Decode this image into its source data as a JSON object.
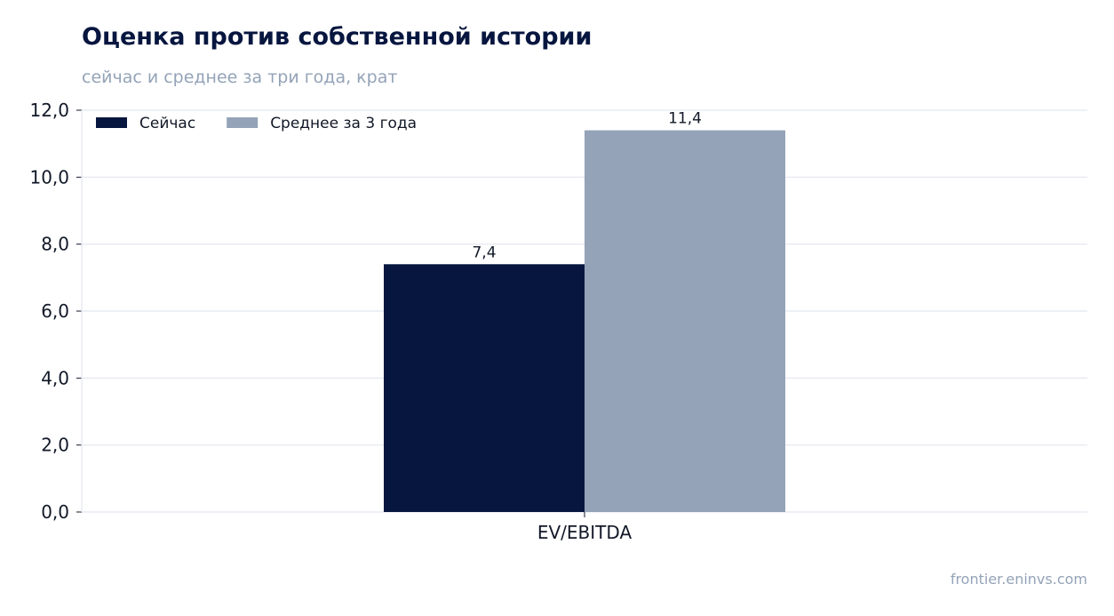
{
  "header": {
    "title": "Оценка против собственной истории",
    "subtitle": "сейчас и среднее за три года, крат"
  },
  "footer": {
    "source": "frontier.eninvs.com"
  },
  "colors": {
    "series_now": "#06163f",
    "series_avg": "#94a3b8",
    "grid": "#e2e6ee",
    "axis": "#111827"
  },
  "chart_data": {
    "type": "bar",
    "title": "Оценка против собственной истории",
    "subtitle": "сейчас и среднее за три года, крат",
    "categories": [
      "EV/EBITDA"
    ],
    "series": [
      {
        "name": "Сейчас",
        "values": [
          7.4
        ],
        "labels": [
          "7,4"
        ]
      },
      {
        "name": "Среднее за 3 года",
        "values": [
          11.4
        ],
        "labels": [
          "11,4"
        ]
      }
    ],
    "ylim": [
      0,
      12
    ],
    "yticks": [
      0,
      2,
      4,
      6,
      8,
      10,
      12
    ],
    "ytick_labels": [
      "0,0",
      "2,0",
      "4,0",
      "6,0",
      "8,0",
      "10,0",
      "12,0"
    ],
    "xlabel": "",
    "ylabel": "",
    "grid": true,
    "legend_position": "top-left"
  }
}
